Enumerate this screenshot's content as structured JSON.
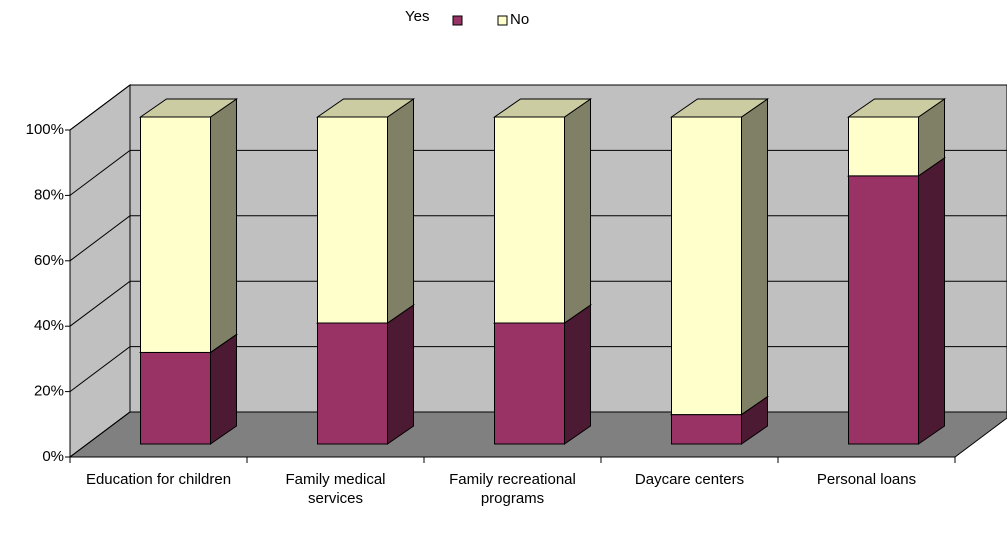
{
  "chart_data": {
    "type": "stacked_bar_3d",
    "categories": [
      "Education for children",
      "Family medical services",
      "Family recreational programs",
      "Daycare centers",
      "Personal loans"
    ],
    "series": [
      {
        "name": "Yes",
        "color": "#993366",
        "values": [
          28,
          37,
          37,
          9,
          82
        ]
      },
      {
        "name": "No",
        "color": "#ffffcc",
        "values": [
          72,
          63,
          63,
          91,
          18
        ]
      }
    ],
    "ylim": [
      0,
      100
    ],
    "yticks": [
      {
        "value": 0,
        "label": "0%"
      },
      {
        "value": 20,
        "label": "20%"
      },
      {
        "value": 40,
        "label": "40%"
      },
      {
        "value": 60,
        "label": "60%"
      },
      {
        "value": 80,
        "label": "80%"
      },
      {
        "value": 100,
        "label": "100%"
      }
    ],
    "grid": true
  }
}
